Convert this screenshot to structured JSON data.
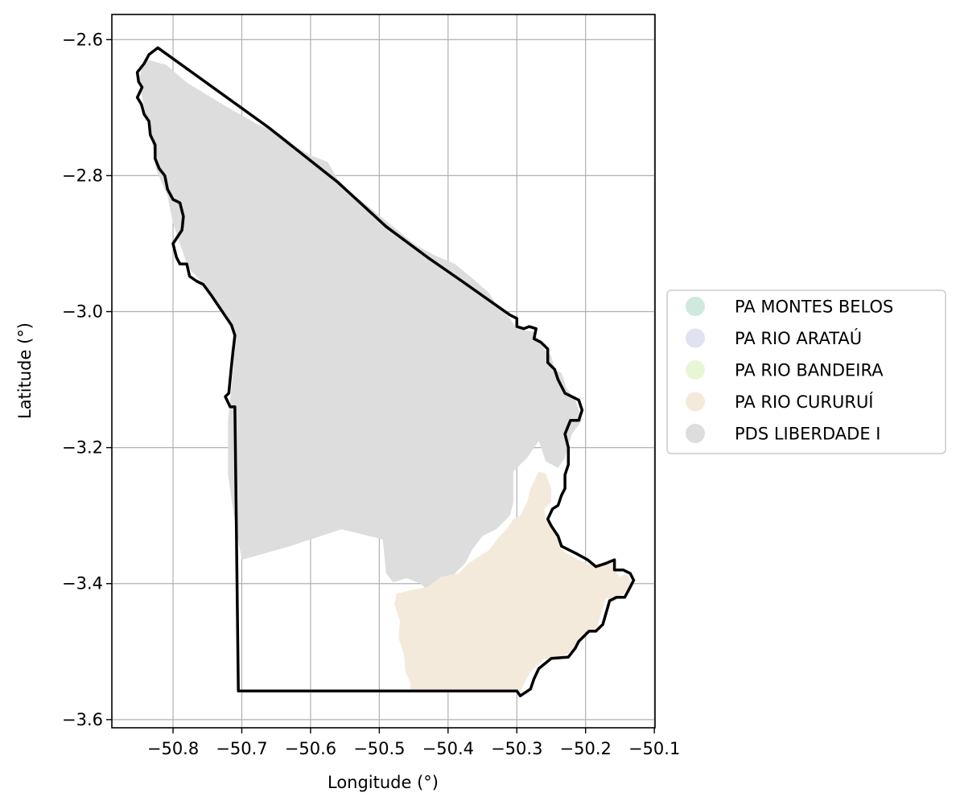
{
  "chart_data": {
    "type": "map",
    "xlabel": "Longitude (°)",
    "ylabel": "Latitude (°)",
    "xlim": [
      -50.889,
      -50.099
    ],
    "ylim": [
      -3.612,
      -2.563
    ],
    "xticks": [
      -50.8,
      -50.7,
      -50.6,
      -50.5,
      -50.4,
      -50.3,
      -50.2,
      -50.1
    ],
    "yticks": [
      -3.6,
      -3.4,
      -3.2,
      -3.0,
      -2.8,
      -2.6
    ],
    "xtick_labels": [
      "−50.8",
      "−50.7",
      "−50.6",
      "−50.5",
      "−50.4",
      "−50.3",
      "−50.2",
      "−50.1"
    ],
    "ytick_labels": [
      "−3.6",
      "−3.4",
      "−3.2",
      "−3.0",
      "−2.8",
      "−2.6"
    ],
    "grid": true,
    "legend_position": "center-right",
    "series": [
      {
        "name": "PA MONTES BELOS",
        "color": "#cfeadc"
      },
      {
        "name": "PA RIO ARATAÚ",
        "color": "#dfe3f1"
      },
      {
        "name": "PA RIO BANDEIRA",
        "color": "#e9f6d6"
      },
      {
        "name": "PA RIO CURURUÍ",
        "color": "#f4eadc"
      },
      {
        "name": "PDS LIBERDADE I",
        "color": "#dddddd"
      }
    ],
    "regions": [
      {
        "name": "PDS LIBERDADE I",
        "coords": [
          [
            -50.842,
            -2.628
          ],
          [
            -50.81,
            -2.637
          ],
          [
            -50.78,
            -2.663
          ],
          [
            -50.753,
            -2.68
          ],
          [
            -50.72,
            -2.7
          ],
          [
            -50.68,
            -2.723
          ],
          [
            -50.645,
            -2.738
          ],
          [
            -50.62,
            -2.758
          ],
          [
            -50.6,
            -2.77
          ],
          [
            -50.575,
            -2.78
          ],
          [
            -50.56,
            -2.806
          ],
          [
            -50.54,
            -2.826
          ],
          [
            -50.51,
            -2.85
          ],
          [
            -50.48,
            -2.875
          ],
          [
            -50.45,
            -2.9
          ],
          [
            -50.42,
            -2.917
          ],
          [
            -50.39,
            -2.93
          ],
          [
            -50.36,
            -2.955
          ],
          [
            -50.34,
            -2.973
          ],
          [
            -50.33,
            -2.99
          ],
          [
            -50.31,
            -3.01
          ],
          [
            -50.3,
            -3.025
          ],
          [
            -50.275,
            -3.03
          ],
          [
            -50.26,
            -3.055
          ],
          [
            -50.25,
            -3.065
          ],
          [
            -50.245,
            -3.085
          ],
          [
            -50.235,
            -3.09
          ],
          [
            -50.228,
            -3.112
          ],
          [
            -50.215,
            -3.13
          ],
          [
            -50.205,
            -3.16
          ],
          [
            -50.22,
            -3.18
          ],
          [
            -50.23,
            -3.215
          ],
          [
            -50.24,
            -3.23
          ],
          [
            -50.258,
            -3.22
          ],
          [
            -50.268,
            -3.19
          ],
          [
            -50.285,
            -3.215
          ],
          [
            -50.305,
            -3.235
          ],
          [
            -50.305,
            -3.28
          ],
          [
            -50.31,
            -3.3
          ],
          [
            -50.32,
            -3.31
          ],
          [
            -50.33,
            -3.32
          ],
          [
            -50.35,
            -3.33
          ],
          [
            -50.365,
            -3.35
          ],
          [
            -50.375,
            -3.37
          ],
          [
            -50.395,
            -3.39
          ],
          [
            -50.415,
            -3.397
          ],
          [
            -50.43,
            -3.41
          ],
          [
            -50.44,
            -3.4
          ],
          [
            -50.46,
            -3.392
          ],
          [
            -50.48,
            -3.398
          ],
          [
            -50.49,
            -3.385
          ],
          [
            -50.495,
            -3.335
          ],
          [
            -50.555,
            -3.32
          ],
          [
            -50.63,
            -3.345
          ],
          [
            -50.7,
            -3.365
          ],
          [
            -50.71,
            -3.31
          ],
          [
            -50.72,
            -3.24
          ],
          [
            -50.72,
            -3.16
          ],
          [
            -50.712,
            -3.08
          ],
          [
            -50.71,
            -3.03
          ],
          [
            -50.735,
            -2.99
          ],
          [
            -50.755,
            -2.96
          ],
          [
            -50.778,
            -2.935
          ],
          [
            -50.79,
            -2.9
          ],
          [
            -50.8,
            -2.87
          ],
          [
            -50.808,
            -2.83
          ],
          [
            -50.825,
            -2.79
          ],
          [
            -50.832,
            -2.74
          ],
          [
            -50.842,
            -2.7
          ],
          [
            -50.85,
            -2.66
          ]
        ]
      },
      {
        "name": "PA RIO CURURUÍ",
        "coords": [
          [
            -50.268,
            -3.235
          ],
          [
            -50.258,
            -3.238
          ],
          [
            -50.25,
            -3.26
          ],
          [
            -50.25,
            -3.28
          ],
          [
            -50.26,
            -3.29
          ],
          [
            -50.258,
            -3.305
          ],
          [
            -50.245,
            -3.322
          ],
          [
            -50.24,
            -3.335
          ],
          [
            -50.235,
            -3.35
          ],
          [
            -50.22,
            -3.36
          ],
          [
            -50.2,
            -3.37
          ],
          [
            -50.18,
            -3.375
          ],
          [
            -50.162,
            -3.365
          ],
          [
            -50.158,
            -3.38
          ],
          [
            -50.15,
            -3.39
          ],
          [
            -50.14,
            -3.385
          ],
          [
            -50.132,
            -3.4
          ],
          [
            -50.14,
            -3.41
          ],
          [
            -50.15,
            -3.42
          ],
          [
            -50.16,
            -3.428
          ],
          [
            -50.17,
            -3.42
          ],
          [
            -50.185,
            -3.47
          ],
          [
            -50.2,
            -3.47
          ],
          [
            -50.21,
            -3.49
          ],
          [
            -50.22,
            -3.5
          ],
          [
            -50.24,
            -3.51
          ],
          [
            -50.25,
            -3.512
          ],
          [
            -50.26,
            -3.51
          ],
          [
            -50.28,
            -3.53
          ],
          [
            -50.29,
            -3.548
          ],
          [
            -50.295,
            -3.562
          ],
          [
            -50.3,
            -3.558
          ],
          [
            -50.455,
            -3.558
          ],
          [
            -50.455,
            -3.545
          ],
          [
            -50.462,
            -3.53
          ],
          [
            -50.464,
            -3.505
          ],
          [
            -50.472,
            -3.48
          ],
          [
            -50.47,
            -3.455
          ],
          [
            -50.478,
            -3.43
          ],
          [
            -50.475,
            -3.415
          ],
          [
            -50.455,
            -3.41
          ],
          [
            -50.43,
            -3.405
          ],
          [
            -50.41,
            -3.39
          ],
          [
            -50.385,
            -3.385
          ],
          [
            -50.37,
            -3.37
          ],
          [
            -50.355,
            -3.36
          ],
          [
            -50.34,
            -3.35
          ],
          [
            -50.325,
            -3.33
          ],
          [
            -50.315,
            -3.32
          ],
          [
            -50.305,
            -3.305
          ],
          [
            -50.295,
            -3.3
          ],
          [
            -50.285,
            -3.28
          ],
          [
            -50.28,
            -3.26
          ]
        ]
      }
    ],
    "boundary": [
      [
        -50.822,
        -2.612
      ],
      [
        -50.835,
        -2.622
      ],
      [
        -50.842,
        -2.635
      ],
      [
        -50.852,
        -2.648
      ],
      [
        -50.85,
        -2.662
      ],
      [
        -50.845,
        -2.67
      ],
      [
        -50.852,
        -2.685
      ],
      [
        -50.846,
        -2.695
      ],
      [
        -50.842,
        -2.71
      ],
      [
        -50.835,
        -2.72
      ],
      [
        -50.833,
        -2.74
      ],
      [
        -50.826,
        -2.755
      ],
      [
        -50.826,
        -2.775
      ],
      [
        -50.82,
        -2.79
      ],
      [
        -50.812,
        -2.8
      ],
      [
        -50.808,
        -2.82
      ],
      [
        -50.8,
        -2.835
      ],
      [
        -50.79,
        -2.84
      ],
      [
        -50.785,
        -2.86
      ],
      [
        -50.787,
        -2.88
      ],
      [
        -50.8,
        -2.9
      ],
      [
        -50.795,
        -2.92
      ],
      [
        -50.79,
        -2.93
      ],
      [
        -50.78,
        -2.93
      ],
      [
        -50.776,
        -2.948
      ],
      [
        -50.766,
        -2.955
      ],
      [
        -50.756,
        -2.96
      ],
      [
        -50.745,
        -2.975
      ],
      [
        -50.735,
        -2.99
      ],
      [
        -50.725,
        -3.005
      ],
      [
        -50.715,
        -3.02
      ],
      [
        -50.71,
        -3.035
      ],
      [
        -50.713,
        -3.06
      ],
      [
        -50.716,
        -3.09
      ],
      [
        -50.719,
        -3.12
      ],
      [
        -50.724,
        -3.125
      ],
      [
        -50.717,
        -3.14
      ],
      [
        -50.71,
        -3.14
      ],
      [
        -50.705,
        -3.558
      ],
      [
        -50.3,
        -3.558
      ],
      [
        -50.295,
        -3.565
      ],
      [
        -50.28,
        -3.555
      ],
      [
        -50.275,
        -3.54
      ],
      [
        -50.268,
        -3.525
      ],
      [
        -50.25,
        -3.51
      ],
      [
        -50.225,
        -3.508
      ],
      [
        -50.215,
        -3.495
      ],
      [
        -50.21,
        -3.485
      ],
      [
        -50.195,
        -3.47
      ],
      [
        -50.185,
        -3.47
      ],
      [
        -50.175,
        -3.46
      ],
      [
        -50.165,
        -3.425
      ],
      [
        -50.155,
        -3.42
      ],
      [
        -50.143,
        -3.42
      ],
      [
        -50.135,
        -3.405
      ],
      [
        -50.13,
        -3.395
      ],
      [
        -50.135,
        -3.385
      ],
      [
        -50.145,
        -3.38
      ],
      [
        -50.158,
        -3.38
      ],
      [
        -50.158,
        -3.365
      ],
      [
        -50.17,
        -3.37
      ],
      [
        -50.185,
        -3.375
      ],
      [
        -50.197,
        -3.365
      ],
      [
        -50.215,
        -3.355
      ],
      [
        -50.235,
        -3.345
      ],
      [
        -50.24,
        -3.33
      ],
      [
        -50.25,
        -3.315
      ],
      [
        -50.255,
        -3.305
      ],
      [
        -50.248,
        -3.29
      ],
      [
        -50.24,
        -3.285
      ],
      [
        -50.235,
        -3.27
      ],
      [
        -50.23,
        -3.26
      ],
      [
        -50.23,
        -3.24
      ],
      [
        -50.225,
        -3.225
      ],
      [
        -50.225,
        -3.2
      ],
      [
        -50.23,
        -3.18
      ],
      [
        -50.222,
        -3.16
      ],
      [
        -50.21,
        -3.16
      ],
      [
        -50.205,
        -3.145
      ],
      [
        -50.21,
        -3.13
      ],
      [
        -50.22,
        -3.125
      ],
      [
        -50.23,
        -3.12
      ],
      [
        -50.24,
        -3.1
      ],
      [
        -50.245,
        -3.085
      ],
      [
        -50.255,
        -3.075
      ],
      [
        -50.255,
        -3.055
      ],
      [
        -50.265,
        -3.045
      ],
      [
        -50.275,
        -3.04
      ],
      [
        -50.272,
        -3.025
      ],
      [
        -50.282,
        -3.022
      ],
      [
        -50.29,
        -3.025
      ],
      [
        -50.3,
        -3.022
      ],
      [
        -50.3,
        -3.01
      ],
      [
        -50.31,
        -3.005
      ],
      [
        -50.38,
        -2.955
      ],
      [
        -50.43,
        -2.92
      ],
      [
        -50.49,
        -2.875
      ],
      [
        -50.56,
        -2.81
      ],
      [
        -50.66,
        -2.73
      ]
    ]
  }
}
